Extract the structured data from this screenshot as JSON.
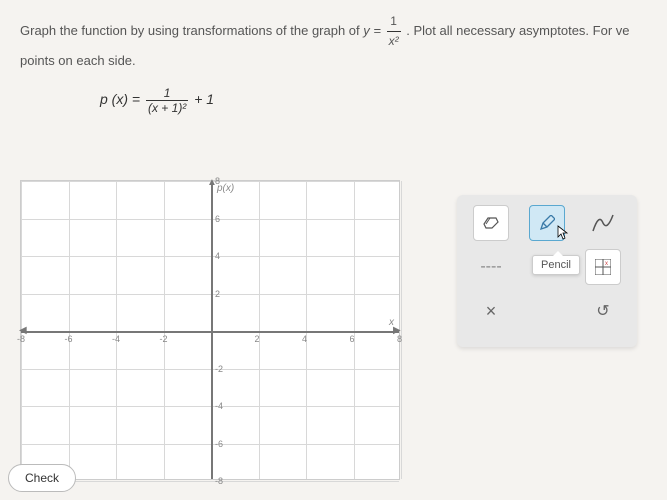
{
  "instruction": {
    "part1": "Graph the function by using transformations of the graph of ",
    "base_eq_lhs": "y =",
    "base_num": "1",
    "base_den": "x²",
    "part2": ". Plot all necessary asymptotes. For ve",
    "part3": "points on each side."
  },
  "formula": {
    "lhs": "p (x) =",
    "num": "1",
    "den": "(x + 1)²",
    "tail": "+ 1"
  },
  "graph": {
    "x_min": -8,
    "x_max": 8,
    "y_min": -8,
    "y_max": 8,
    "x_ticks": [
      -8,
      -6,
      -4,
      -2,
      2,
      4,
      6,
      8
    ],
    "y_ticks": [
      -8,
      -6,
      -4,
      -2,
      2,
      4,
      6,
      8
    ],
    "axis_label_y": "p(x)",
    "axis_label_x": "x",
    "grid_color": "#d8d8d8",
    "axis_color": "#777",
    "bg": "#ffffff"
  },
  "toolbar": {
    "eraser": "eraser",
    "pencil": "pencil",
    "curve": "curve",
    "dash": "----",
    "grid": "grid",
    "close": "×",
    "reset": "↺",
    "tooltip": "Pencil"
  },
  "check_label": "Check"
}
